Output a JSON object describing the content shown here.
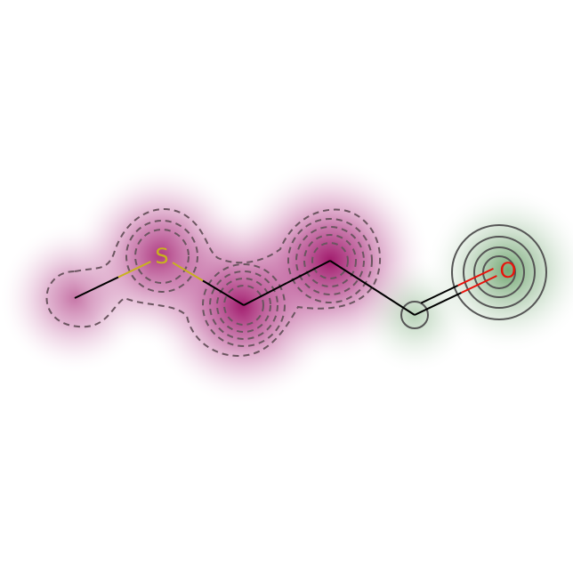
{
  "molecule": {
    "atoms": [
      {
        "id": "c1",
        "symbol": "",
        "weight": -0.35
      },
      {
        "id": "s",
        "symbol": "S",
        "weight": -0.75,
        "color": "#c8b21e"
      },
      {
        "id": "c3",
        "symbol": "",
        "weight": -0.95
      },
      {
        "id": "c4",
        "symbol": "",
        "weight": -1.0
      },
      {
        "id": "c5",
        "symbol": "",
        "weight": 0.15
      },
      {
        "id": "o",
        "symbol": "O",
        "weight": 0.75,
        "color": "#e8120b"
      }
    ],
    "bonds": [
      {
        "from": "c1",
        "to": "s",
        "order": 1
      },
      {
        "from": "s",
        "to": "c3",
        "order": 1
      },
      {
        "from": "c3",
        "to": "c4",
        "order": 1
      },
      {
        "from": "c4",
        "to": "c5",
        "order": 1
      },
      {
        "from": "c5",
        "to": "o",
        "order": 2
      }
    ]
  },
  "colors": {
    "negative": "#9c0e64",
    "positive": "#2b7a2b",
    "carbon_bond": "#000000",
    "negative_contour": "#6b5560",
    "positive_contour": "#555555"
  }
}
